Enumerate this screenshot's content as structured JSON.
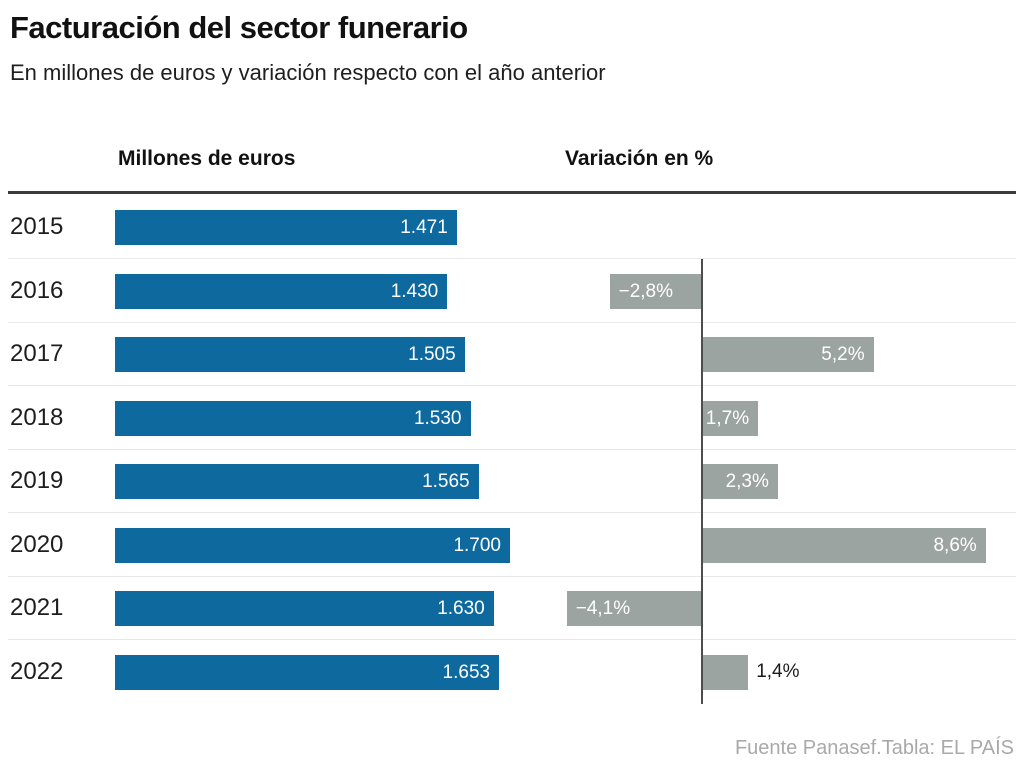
{
  "title": "Facturación del sector funerario",
  "subtitle": "En millones de euros y variación respecto con el año anterior",
  "columns": {
    "left": "Millones de euros",
    "right": "Variación en %"
  },
  "footer": "Fuente Panasef.Tabla: EL PAÍS",
  "colors": {
    "revenue_bar": "#0e6a9e",
    "variation_bar": "#9ca4a2",
    "bar_label": "#ffffff",
    "outside_label": "#1a1a1a",
    "zero_line": "#4d4d4d",
    "header_rule": "#3a3a3a",
    "row_separator": "#e8e8e8",
    "text_dark": "#1d1d1d",
    "footer_text": "#a9a9a9"
  },
  "chart_data": {
    "type": "bar",
    "orientation": "horizontal",
    "title": "Facturación del sector funerario",
    "subtitle": "En millones de euros y variación respecto con el año anterior",
    "categories": [
      "2015",
      "2016",
      "2017",
      "2018",
      "2019",
      "2020",
      "2021",
      "2022"
    ],
    "series": [
      {
        "name": "Millones de euros",
        "values": [
          1471,
          1430,
          1505,
          1530,
          1565,
          1700,
          1630,
          1653
        ],
        "labels": [
          "1.471",
          "1.430",
          "1.505",
          "1.530",
          "1.565",
          "1.700",
          "1.630",
          "1.653"
        ],
        "color": "#0e6a9e",
        "xlim": [
          0,
          1700
        ]
      },
      {
        "name": "Variación en %",
        "values": [
          null,
          -2.8,
          5.2,
          1.7,
          2.3,
          8.6,
          -4.1,
          1.4
        ],
        "labels": [
          "",
          "−2,8%",
          "5,2%",
          "1,7%",
          "2,3%",
          "8,6%",
          "−4,1%",
          "1,4%"
        ],
        "color": "#9ca4a2",
        "xlim": [
          -4.1,
          8.6
        ]
      }
    ],
    "legend": false,
    "grid": false,
    "source": "Fuente Panasef.Tabla: EL PAÍS"
  }
}
